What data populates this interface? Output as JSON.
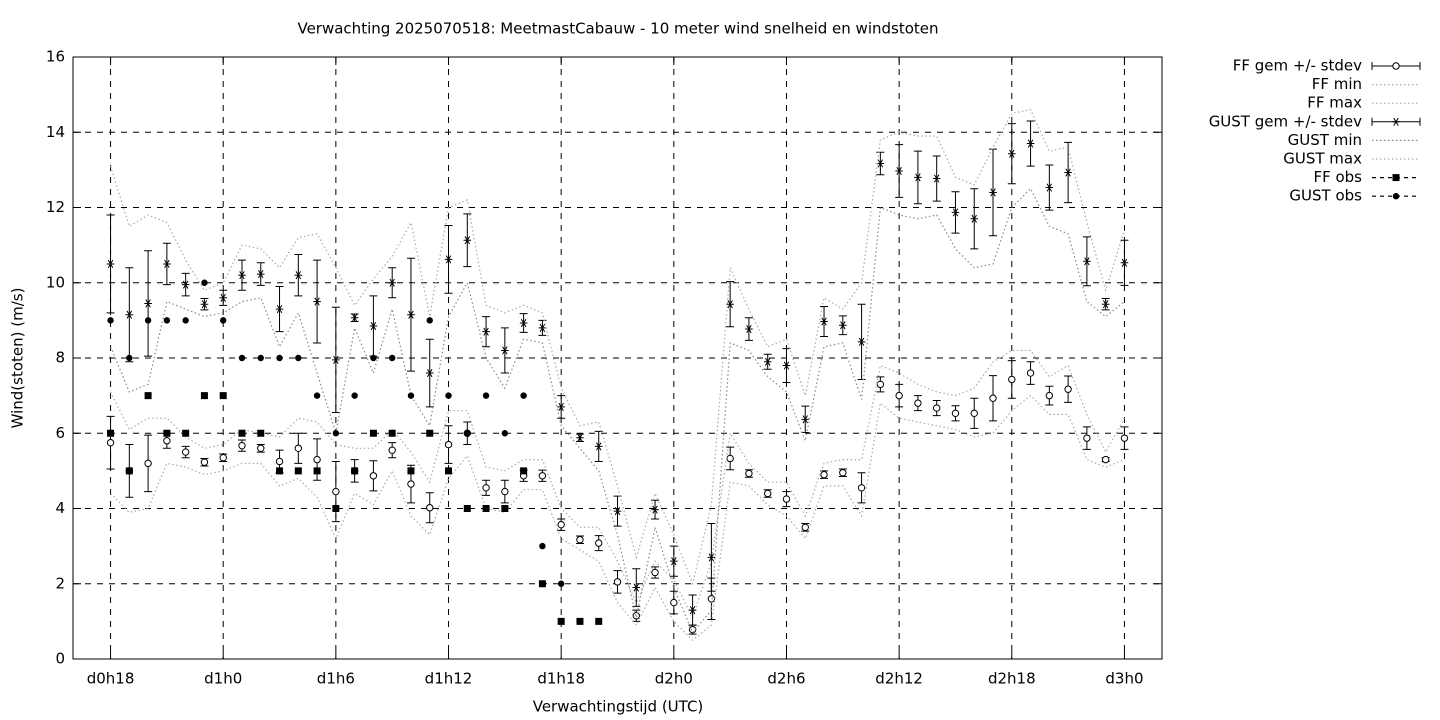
{
  "chart_data": {
    "type": "errorbar",
    "title": "Verwachting 2025070518: MeetmastCabauw - 10 meter wind snelheid en windstoten",
    "xlabel": "Verwachtingstijd (UTC)",
    "ylabel": "Wind(stoten) (m/s)",
    "xlim": [
      16,
      74
    ],
    "ylim": [
      0,
      16
    ],
    "xticks": [
      {
        "value": 18,
        "label": "d0h18"
      },
      {
        "value": 24,
        "label": "d1h0"
      },
      {
        "value": 30,
        "label": "d1h6"
      },
      {
        "value": 36,
        "label": "d1h12"
      },
      {
        "value": 42,
        "label": "d1h18"
      },
      {
        "value": 48,
        "label": "d2h0"
      },
      {
        "value": 54,
        "label": "d2h6"
      },
      {
        "value": 60,
        "label": "d2h12"
      },
      {
        "value": 66,
        "label": "d2h18"
      },
      {
        "value": 72,
        "label": "d3h0"
      }
    ],
    "yticks": [
      0,
      2,
      4,
      6,
      8,
      10,
      12,
      14,
      16
    ],
    "grid": true,
    "legend": "outside-right",
    "x": [
      18,
      19,
      20,
      21,
      22,
      23,
      24,
      25,
      26,
      27,
      28,
      29,
      30,
      31,
      32,
      33,
      34,
      35,
      36,
      37,
      38,
      39,
      40,
      41,
      42,
      43,
      44,
      45,
      46,
      47,
      48,
      49,
      50,
      51,
      52,
      53,
      54,
      55,
      56,
      57,
      58,
      59,
      60,
      61,
      62,
      63,
      64,
      65,
      66,
      67,
      68,
      69,
      70,
      71,
      72
    ],
    "series": [
      {
        "name": "FF gem +/- stdev",
        "style": "errorbar",
        "marker": "circle-open",
        "color": "#000000",
        "values": [
          5.75,
          5.0,
          5.2,
          5.8,
          5.5,
          5.23,
          5.35,
          5.67,
          5.6,
          5.25,
          5.6,
          5.3,
          4.45,
          5.0,
          4.87,
          5.55,
          4.65,
          4.02,
          5.7,
          6.0,
          4.55,
          4.45,
          4.87,
          4.87,
          3.57,
          3.17,
          3.08,
          2.05,
          1.15,
          2.3,
          1.5,
          0.78,
          1.6,
          5.33,
          4.93,
          4.4,
          4.25,
          3.5,
          4.9,
          4.95,
          4.55,
          7.3,
          7.0,
          6.8,
          6.67,
          6.53,
          6.53,
          6.93,
          7.43,
          7.6,
          7.0,
          7.17,
          5.87,
          5.3,
          5.87
        ],
        "errors": [
          0.7,
          0.7,
          0.75,
          0.2,
          0.15,
          0.1,
          0.1,
          0.15,
          0.1,
          0.3,
          0.4,
          0.55,
          0.8,
          0.3,
          0.4,
          0.2,
          0.5,
          0.4,
          0.5,
          0.3,
          0.2,
          0.3,
          0.15,
          0.15,
          0.15,
          0.1,
          0.2,
          0.3,
          0.15,
          0.15,
          0.3,
          0.12,
          0.55,
          0.3,
          0.1,
          0.1,
          0.2,
          0.1,
          0.1,
          0.1,
          0.4,
          0.2,
          0.3,
          0.2,
          0.2,
          0.2,
          0.4,
          0.6,
          0.5,
          0.3,
          0.25,
          0.35,
          0.3,
          0.05,
          0.3
        ]
      },
      {
        "name": "FF min",
        "style": "line",
        "color": "#aaaaaa",
        "values": [
          4.4,
          3.9,
          4.0,
          5.2,
          5.1,
          4.9,
          5.0,
          5.2,
          5.2,
          4.6,
          4.8,
          4.3,
          3.2,
          4.4,
          4.1,
          5.0,
          3.8,
          3.3,
          4.8,
          5.4,
          4.0,
          3.9,
          4.5,
          4.5,
          3.2,
          2.9,
          2.6,
          1.5,
          0.9,
          1.9,
          1.0,
          0.5,
          0.9,
          4.7,
          4.6,
          4.1,
          3.8,
          3.2,
          4.6,
          4.6,
          3.8,
          6.8,
          6.4,
          6.3,
          6.2,
          6.1,
          5.9,
          6.0,
          6.6,
          7.0,
          6.5,
          6.5,
          5.3,
          5.1,
          5.3
        ]
      },
      {
        "name": "FF max",
        "style": "line",
        "color": "#aaaaaa",
        "values": [
          7.1,
          6.1,
          6.4,
          6.4,
          5.9,
          5.6,
          5.7,
          6.1,
          6.0,
          5.9,
          6.4,
          6.3,
          5.7,
          5.6,
          5.6,
          6.1,
          5.5,
          4.7,
          6.6,
          6.6,
          5.1,
          5.0,
          5.3,
          5.3,
          4.0,
          3.5,
          3.5,
          2.6,
          1.5,
          2.6,
          2.1,
          1.1,
          2.6,
          6.0,
          5.2,
          4.7,
          4.7,
          3.8,
          5.2,
          5.3,
          5.3,
          7.8,
          7.6,
          7.3,
          7.1,
          7.0,
          7.2,
          7.9,
          8.2,
          8.2,
          7.5,
          7.8,
          6.5,
          5.5,
          6.4
        ]
      },
      {
        "name": "GUST gem +/- stdev",
        "style": "errorbar",
        "marker": "star",
        "color": "#000000",
        "values": [
          10.5,
          9.15,
          9.45,
          10.5,
          9.95,
          9.43,
          9.6,
          10.2,
          10.23,
          9.3,
          10.2,
          9.5,
          7.95,
          9.07,
          8.85,
          10.0,
          9.15,
          7.6,
          10.62,
          11.13,
          8.7,
          8.2,
          8.93,
          8.8,
          6.7,
          5.88,
          5.65,
          3.93,
          1.9,
          3.97,
          2.6,
          1.3,
          2.7,
          9.43,
          8.77,
          7.9,
          7.8,
          6.37,
          8.97,
          8.87,
          8.43,
          13.17,
          12.97,
          12.8,
          12.77,
          11.87,
          11.7,
          12.4,
          13.43,
          13.7,
          12.53,
          12.93,
          10.57,
          9.43,
          10.53
        ],
        "errors": [
          1.3,
          1.25,
          1.4,
          0.55,
          0.3,
          0.15,
          0.2,
          0.4,
          0.3,
          0.6,
          0.55,
          1.1,
          1.4,
          0.1,
          0.8,
          0.4,
          1.5,
          0.9,
          0.9,
          0.7,
          0.4,
          0.6,
          0.25,
          0.2,
          0.3,
          0.1,
          0.4,
          0.4,
          0.5,
          0.25,
          0.4,
          0.4,
          0.9,
          0.6,
          0.3,
          0.2,
          0.45,
          0.35,
          0.4,
          0.25,
          1.0,
          0.3,
          0.7,
          0.7,
          0.6,
          0.55,
          0.8,
          1.15,
          0.8,
          0.6,
          0.6,
          0.8,
          0.65,
          0.15,
          0.6
        ]
      },
      {
        "name": "GUST min",
        "style": "line",
        "color": "#888888",
        "values": [
          8.3,
          7.1,
          7.3,
          9.5,
          9.3,
          9.1,
          9.2,
          9.5,
          9.6,
          8.3,
          9.2,
          7.6,
          6.0,
          8.8,
          7.6,
          9.3,
          7.0,
          6.2,
          9.1,
          10.0,
          8.0,
          7.2,
          8.5,
          8.4,
          6.2,
          5.6,
          5.0,
          3.3,
          1.1,
          3.5,
          1.9,
          0.7,
          1.3,
          8.4,
          8.2,
          7.5,
          7.1,
          5.8,
          8.3,
          8.4,
          6.9,
          12.0,
          11.8,
          11.7,
          11.8,
          10.9,
          10.4,
          10.5,
          12.0,
          12.5,
          11.5,
          11.3,
          9.5,
          9.1,
          9.5
        ]
      },
      {
        "name": "GUST max",
        "style": "line",
        "color": "#aaaaaa",
        "values": [
          13.1,
          11.5,
          11.8,
          11.6,
          10.6,
          9.8,
          10.0,
          11.0,
          10.9,
          10.4,
          11.2,
          11.3,
          10.4,
          9.4,
          10.1,
          10.7,
          11.6,
          9.1,
          12.0,
          12.2,
          9.4,
          9.2,
          9.4,
          9.2,
          7.2,
          6.2,
          6.3,
          4.6,
          2.7,
          4.4,
          3.3,
          2.0,
          4.1,
          10.4,
          9.3,
          8.3,
          8.5,
          7.0,
          9.6,
          9.3,
          10.0,
          13.8,
          14.0,
          13.9,
          13.9,
          12.8,
          12.6,
          13.6,
          14.5,
          14.6,
          13.5,
          13.6,
          11.6,
          9.8,
          11.4
        ]
      },
      {
        "name": "FF obs",
        "style": "points",
        "marker": "square",
        "color": "#000000",
        "values": [
          6,
          5,
          7,
          6,
          6,
          7,
          7,
          6,
          6,
          5,
          5,
          5,
          4,
          5,
          6,
          6,
          5,
          6,
          5,
          4,
          4,
          4,
          5,
          2,
          1,
          1,
          1,
          null,
          null,
          null,
          null,
          null,
          null,
          null,
          null,
          null,
          null,
          null,
          null,
          null,
          null,
          null,
          null,
          null,
          null,
          null,
          null,
          null,
          null,
          null,
          null,
          null,
          null,
          null,
          null
        ]
      },
      {
        "name": "GUST obs",
        "style": "points",
        "marker": "circle",
        "color": "#000000",
        "values": [
          9,
          8,
          9,
          9,
          9,
          10,
          9,
          8,
          8,
          8,
          8,
          7,
          6,
          7,
          8,
          8,
          7,
          9,
          7,
          6,
          7,
          6,
          7,
          3,
          2,
          null,
          null,
          null,
          null,
          null,
          null,
          null,
          null,
          null,
          null,
          null,
          null,
          null,
          null,
          null,
          null,
          null,
          null,
          null,
          null,
          null,
          null,
          null,
          null,
          null,
          null,
          null,
          null,
          null,
          null
        ]
      }
    ]
  }
}
